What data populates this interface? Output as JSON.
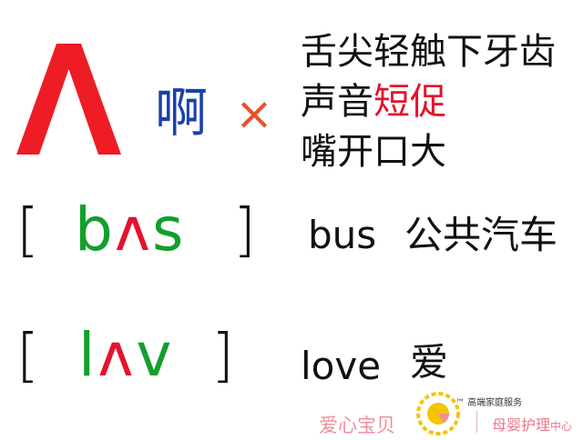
{
  "symbol": {
    "glyph": "ʌ",
    "color": "#ee1c25",
    "chinese_hint": "啊",
    "wrong_mark": "×"
  },
  "tips": {
    "line1": "舌尖轻触下牙齿",
    "line2_prefix": "声音",
    "line2_highlight": "短促",
    "line3": "嘴开口大"
  },
  "examples": [
    {
      "bracket_open": "[",
      "phonetic_pre": "b",
      "phonetic_vowel": "ʌ",
      "phonetic_post": "s",
      "bracket_close": "]",
      "word": "bus",
      "meaning": "公共汽车"
    },
    {
      "bracket_open": "[",
      "phonetic_pre": "l",
      "phonetic_vowel": "ʌ",
      "phonetic_post": "v",
      "bracket_close": "]",
      "word": "love",
      "meaning": "爱"
    }
  ],
  "brand": {
    "name_left": "爱心宝贝",
    "tm_text": "™ 高端家庭服务",
    "name_right_main": "母婴护理",
    "name_right_small": "中心"
  },
  "colors": {
    "red": "#e4122b",
    "green": "#139f2c",
    "blue": "#1c3fae",
    "orange": "#e8502a"
  }
}
